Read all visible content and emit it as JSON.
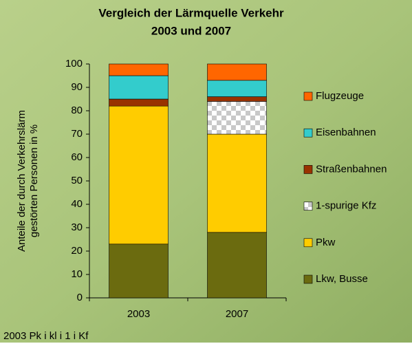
{
  "chart_data": {
    "type": "stacked-bar",
    "title": [
      "Vergleich der Lärmquelle Verkehr",
      "2003 und 2007"
    ],
    "y_label": [
      "Anteile der durch Verkehrslärm",
      "gestörten Personen in %"
    ],
    "categories": [
      "2003",
      "2007"
    ],
    "series": [
      {
        "name": "Lkw, Busse",
        "color": "#6b6b0f",
        "values": [
          23,
          28
        ]
      },
      {
        "name": "Pkw",
        "color": "#ffcc00",
        "values": [
          59,
          42
        ]
      },
      {
        "name": "1-spurige Kfz",
        "color": "#c8c8c8",
        "values": [
          0,
          14
        ]
      },
      {
        "name": "Straßenbahnen",
        "color": "#993300",
        "values": [
          3,
          2
        ]
      },
      {
        "name": "Eisenbahnen",
        "color": "#33cccc",
        "values": [
          10,
          7
        ]
      },
      {
        "name": "Flugzeuge",
        "color": "#ff6600",
        "values": [
          5,
          7
        ]
      }
    ],
    "ylim": [
      0,
      100
    ],
    "yticks": [
      0,
      10,
      20,
      30,
      40,
      50,
      60,
      70,
      80,
      90,
      100
    ],
    "footer": "2003  Pk    i  kl    i      1          i        Kf"
  }
}
